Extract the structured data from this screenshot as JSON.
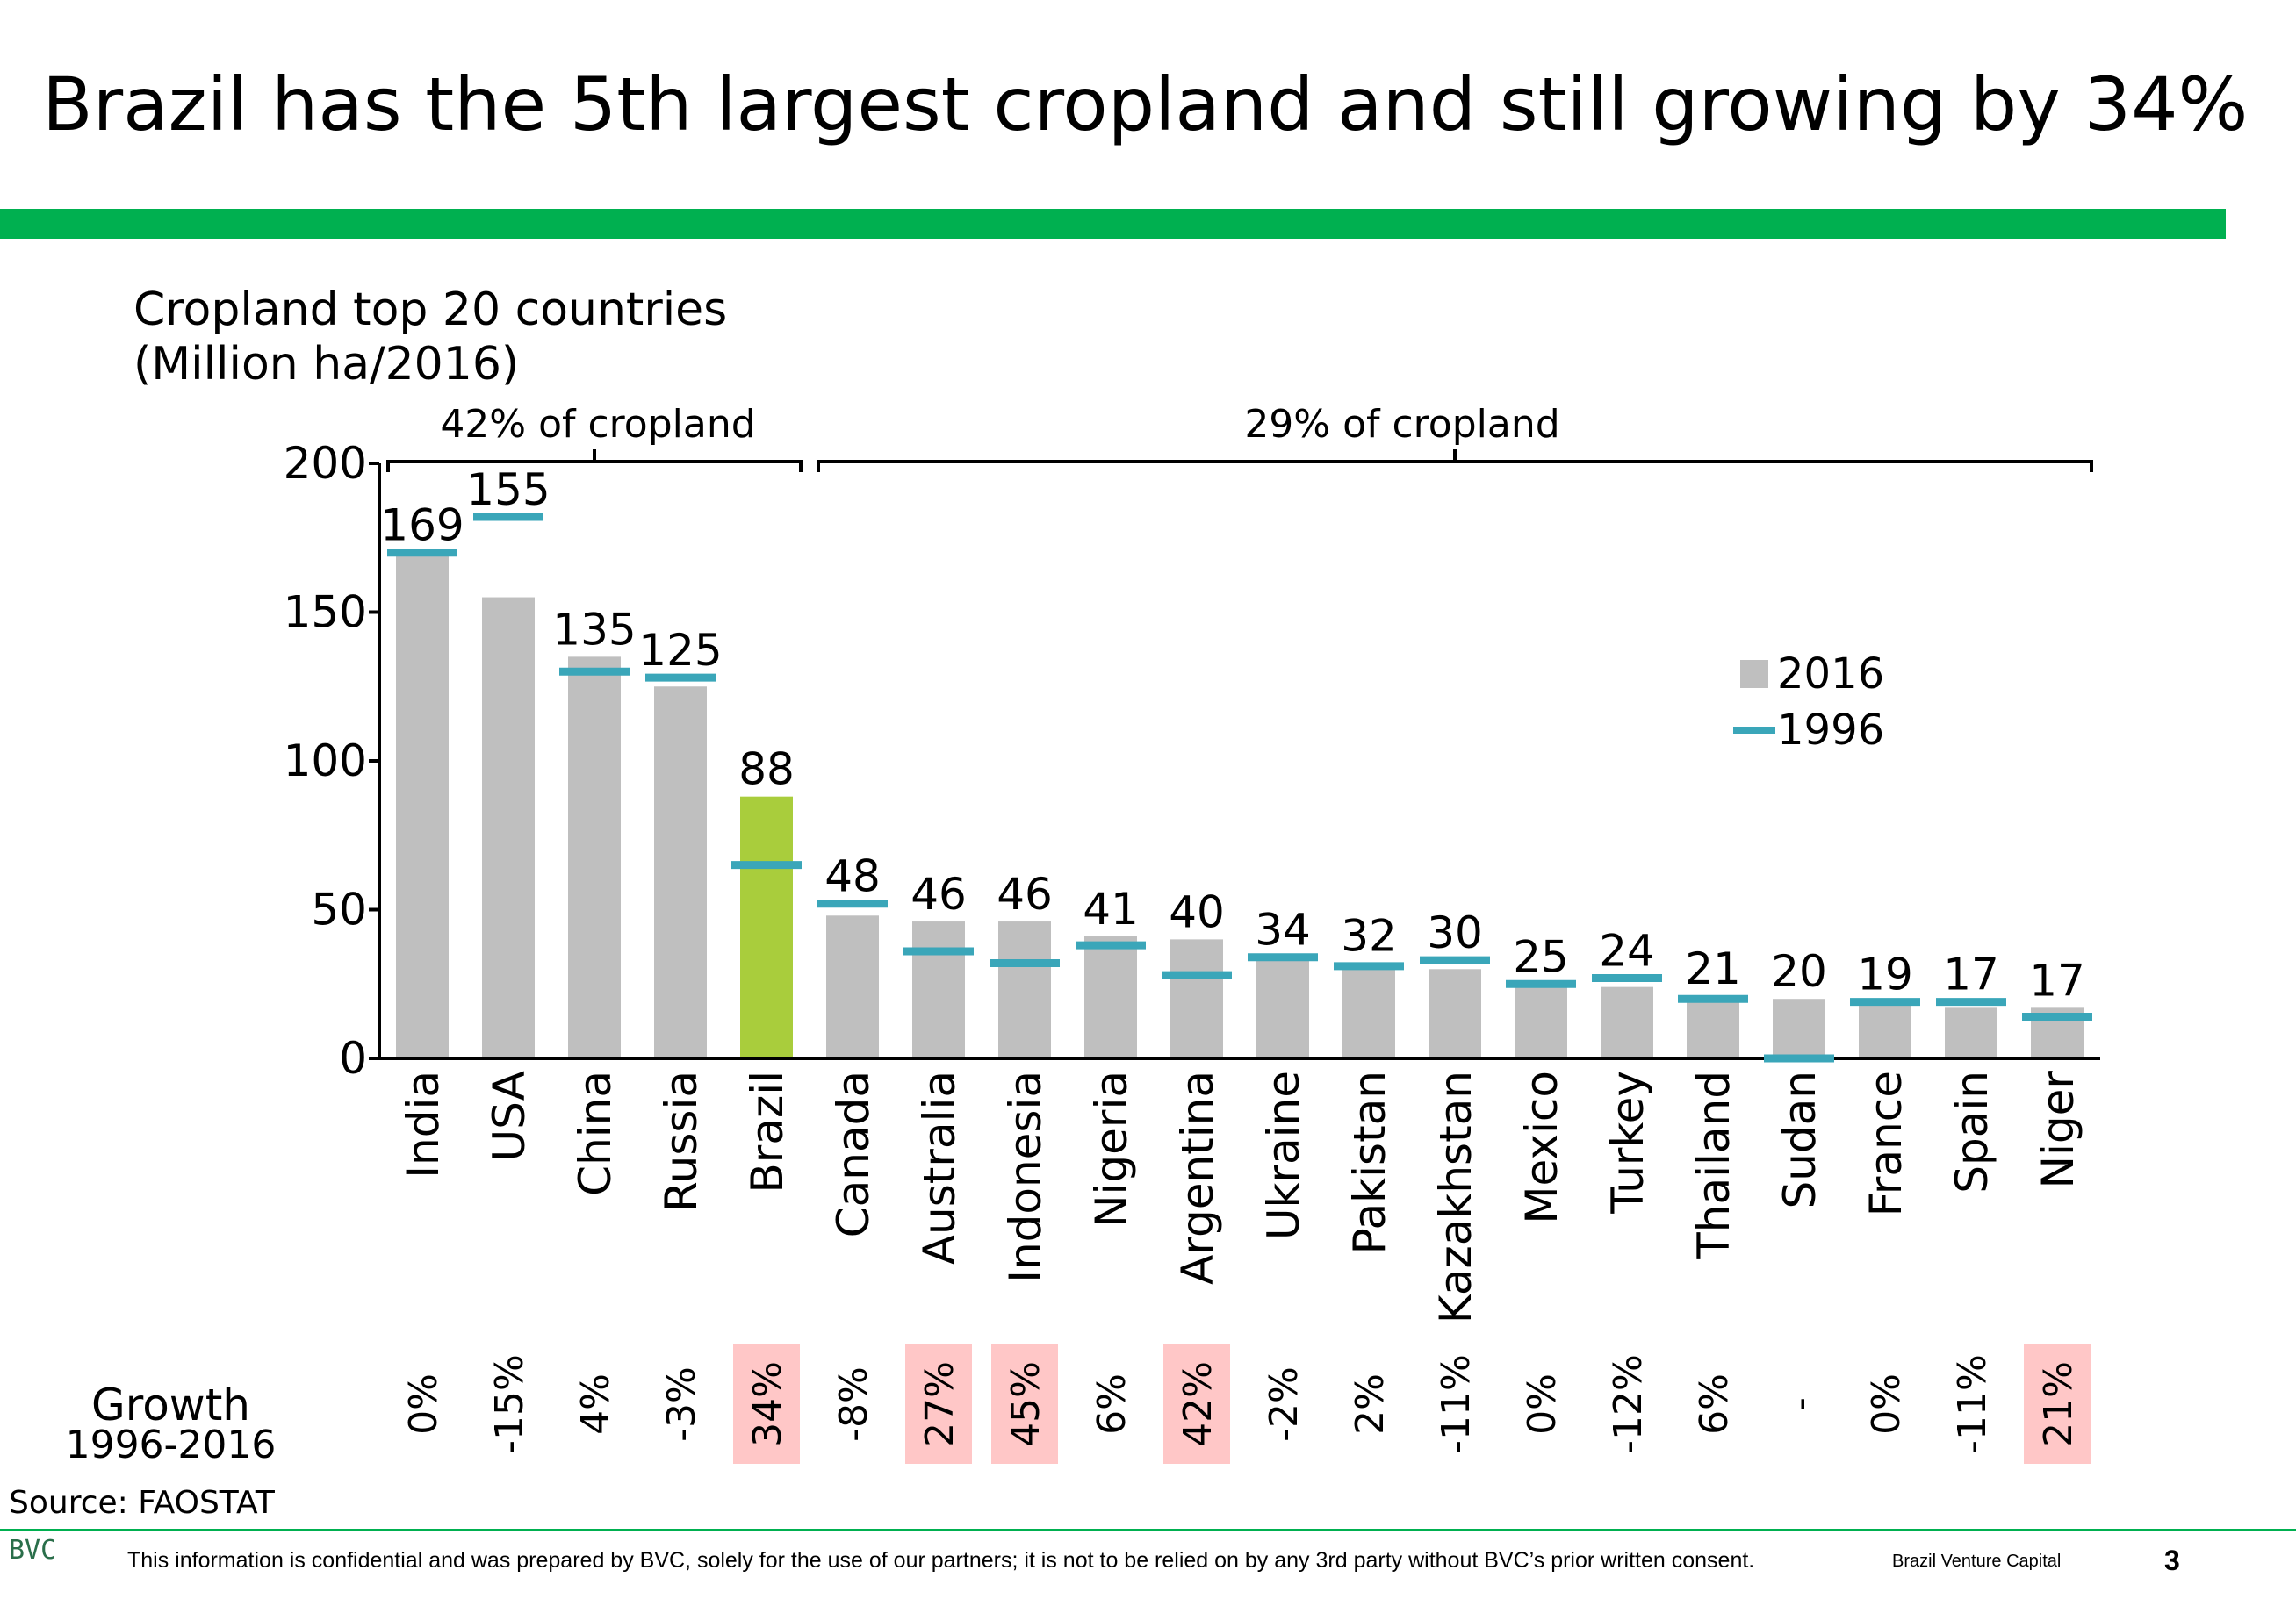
{
  "slide": {
    "title": "Brazil has the 5th largest cropland and still growing by 34%",
    "subtitle_line1": "Cropland top 20 countries",
    "subtitle_line2": "(Million ha/2016)",
    "growth_label_line1": "Growth",
    "growth_label_line2": "1996-2016",
    "source": "Source: FAOSTAT",
    "footer_logo": "BVC",
    "footer_text": "This information is confidential and was prepared by BVC, solely for the use of our partners; it is not to be relied on by any 3rd party without BVC’s prior written consent.",
    "footer_brand": "Brazil Venture Capital",
    "page_number": "3"
  },
  "colors": {
    "accent_green": "#00b050",
    "bar_default": "#bfbfbf",
    "bar_highlight": "#a9cd3c",
    "marker_1996": "#3aa6b9",
    "growth_highlight": "#ffc7c7"
  },
  "chart_data": {
    "type": "bar",
    "ylim": [
      0,
      200
    ],
    "yticks": [
      0,
      50,
      100,
      150,
      200
    ],
    "categories": [
      "India",
      "USA",
      "China",
      "Russia",
      "Brazil",
      "Canada",
      "Australia",
      "Indonesia",
      "Nigeria",
      "Argentina",
      "Ukraine",
      "Pakistan",
      "Kazakhstan",
      "Mexico",
      "Turkey",
      "Thailand",
      "Sudan",
      "France",
      "Spain",
      "Niger"
    ],
    "series": [
      {
        "name": "2016",
        "type": "bar",
        "values": [
          169,
          155,
          135,
          125,
          88,
          48,
          46,
          46,
          41,
          40,
          34,
          32,
          30,
          25,
          24,
          21,
          20,
          19,
          17,
          17
        ]
      },
      {
        "name": "1996",
        "type": "marker",
        "values": [
          170,
          182,
          130,
          128,
          65,
          52,
          36,
          32,
          38,
          28,
          34,
          31,
          33,
          25,
          27,
          20,
          0,
          19,
          19,
          14
        ]
      }
    ],
    "value_labels": [
      "169",
      "155",
      "135",
      "125",
      "88",
      "48",
      "46",
      "46",
      "41",
      "40",
      "34",
      "32",
      "30",
      "25",
      "24",
      "21",
      "20",
      "19",
      "17",
      "17"
    ],
    "highlight_category": "Brazil",
    "growth": [
      "0%",
      "-15%",
      "4%",
      "-3%",
      "34%",
      "-8%",
      "27%",
      "45%",
      "6%",
      "42%",
      "-2%",
      "2%",
      "-11%",
      "0%",
      "-12%",
      "6%",
      "-",
      "0%",
      "-11%",
      "21%"
    ],
    "growth_highlight": [
      false,
      false,
      false,
      false,
      true,
      false,
      true,
      true,
      false,
      true,
      false,
      false,
      false,
      false,
      false,
      false,
      false,
      false,
      false,
      true
    ],
    "groups": [
      {
        "label": "42% of cropland",
        "from": "India",
        "to": "Brazil"
      },
      {
        "label": "29% of cropland",
        "from": "Canada",
        "to": "Niger"
      }
    ],
    "legend": {
      "position": "right",
      "entries": [
        "2016",
        "1996"
      ]
    }
  }
}
